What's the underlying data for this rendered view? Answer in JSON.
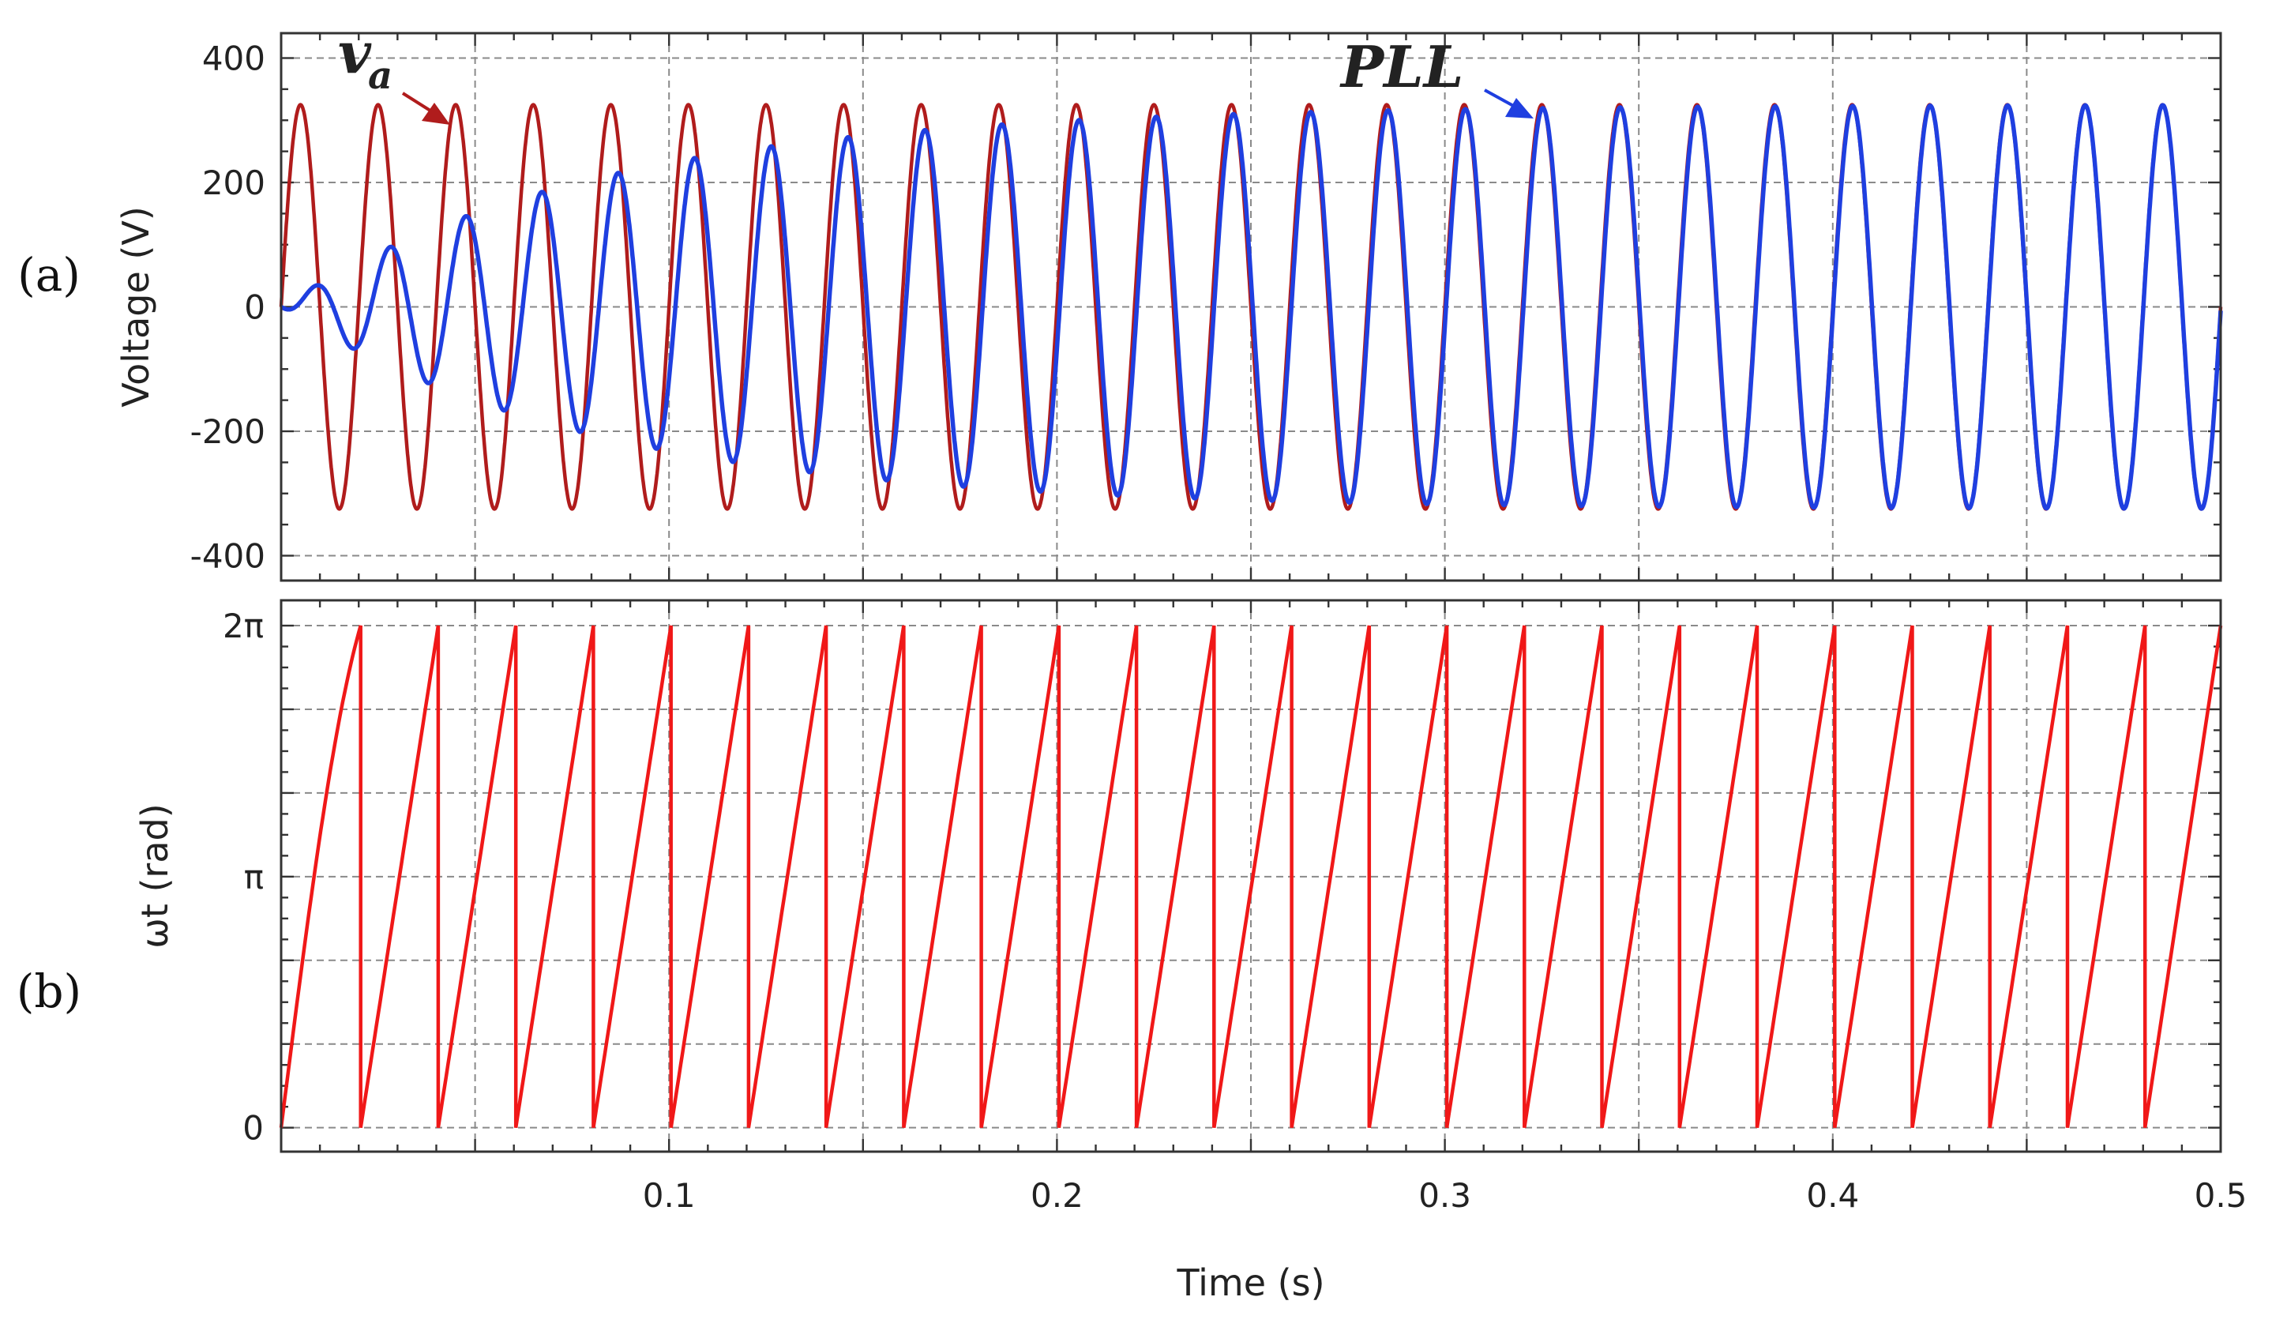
{
  "chart_data": [
    {
      "type": "line",
      "panel_label": "(a)",
      "title": "",
      "xlabel": "",
      "ylabel": "Voltage (V)",
      "xlim": [
        0,
        0.5
      ],
      "ylim": [
        -440,
        440
      ],
      "yticks": [
        -400,
        -200,
        0,
        200,
        400
      ],
      "ytick_labels": [
        "-400",
        "-200",
        "0",
        "200",
        "400"
      ],
      "xticks": [
        0.1,
        0.2,
        0.3,
        0.4,
        0.5
      ],
      "grid": true,
      "frequency_hz": 50,
      "series": [
        {
          "name": "va",
          "color": "#b01c1c",
          "amplitude": 325,
          "phase_offset": 0,
          "description": "grid phase-a voltage, constant amplitude"
        },
        {
          "name": "PLL",
          "color": "#1f3fe0",
          "amplitude_start": 0,
          "amplitude_final": 325,
          "time_constant_s": 0.08,
          "phase_lag_start_rad": 1.2,
          "phase_lag_time_constant_s": 0.12
        }
      ],
      "annotations": [
        {
          "label": "v",
          "subscript": "a",
          "color": "#b01c1c",
          "points_to": "va"
        },
        {
          "label": "PLL",
          "color": "#1f3fe0",
          "points_to": "PLL"
        }
      ]
    },
    {
      "type": "line",
      "panel_label": "(b)",
      "title": "",
      "xlabel": "Time (s)",
      "ylabel": "ωt (rad)",
      "xlim": [
        0,
        0.5
      ],
      "ylim": [
        -0.3,
        6.6
      ],
      "yticks": [
        0,
        3.14159,
        6.28319
      ],
      "ytick_labels": [
        "0",
        "π",
        "2π"
      ],
      "xticks": [
        0.1,
        0.2,
        0.3,
        0.4,
        0.5
      ],
      "xtick_labels": [
        "0.1",
        "0.2",
        "0.3",
        "0.4",
        "0.5"
      ],
      "grid": true,
      "series": [
        {
          "name": "ωt",
          "color": "#f01818",
          "kind": "sawtooth",
          "range": [
            0,
            6.28319
          ],
          "wrap_times_s": [
            0.0205,
            0.0405,
            0.0605,
            0.0805,
            0.1005,
            0.1205,
            0.1405,
            0.1605,
            0.1805,
            0.2005,
            0.2205,
            0.2405,
            0.2605,
            0.2805,
            0.3005,
            0.3205,
            0.3405,
            0.3605,
            0.3805,
            0.4005,
            0.4205,
            0.4405,
            0.4605,
            0.4805
          ]
        }
      ]
    }
  ]
}
